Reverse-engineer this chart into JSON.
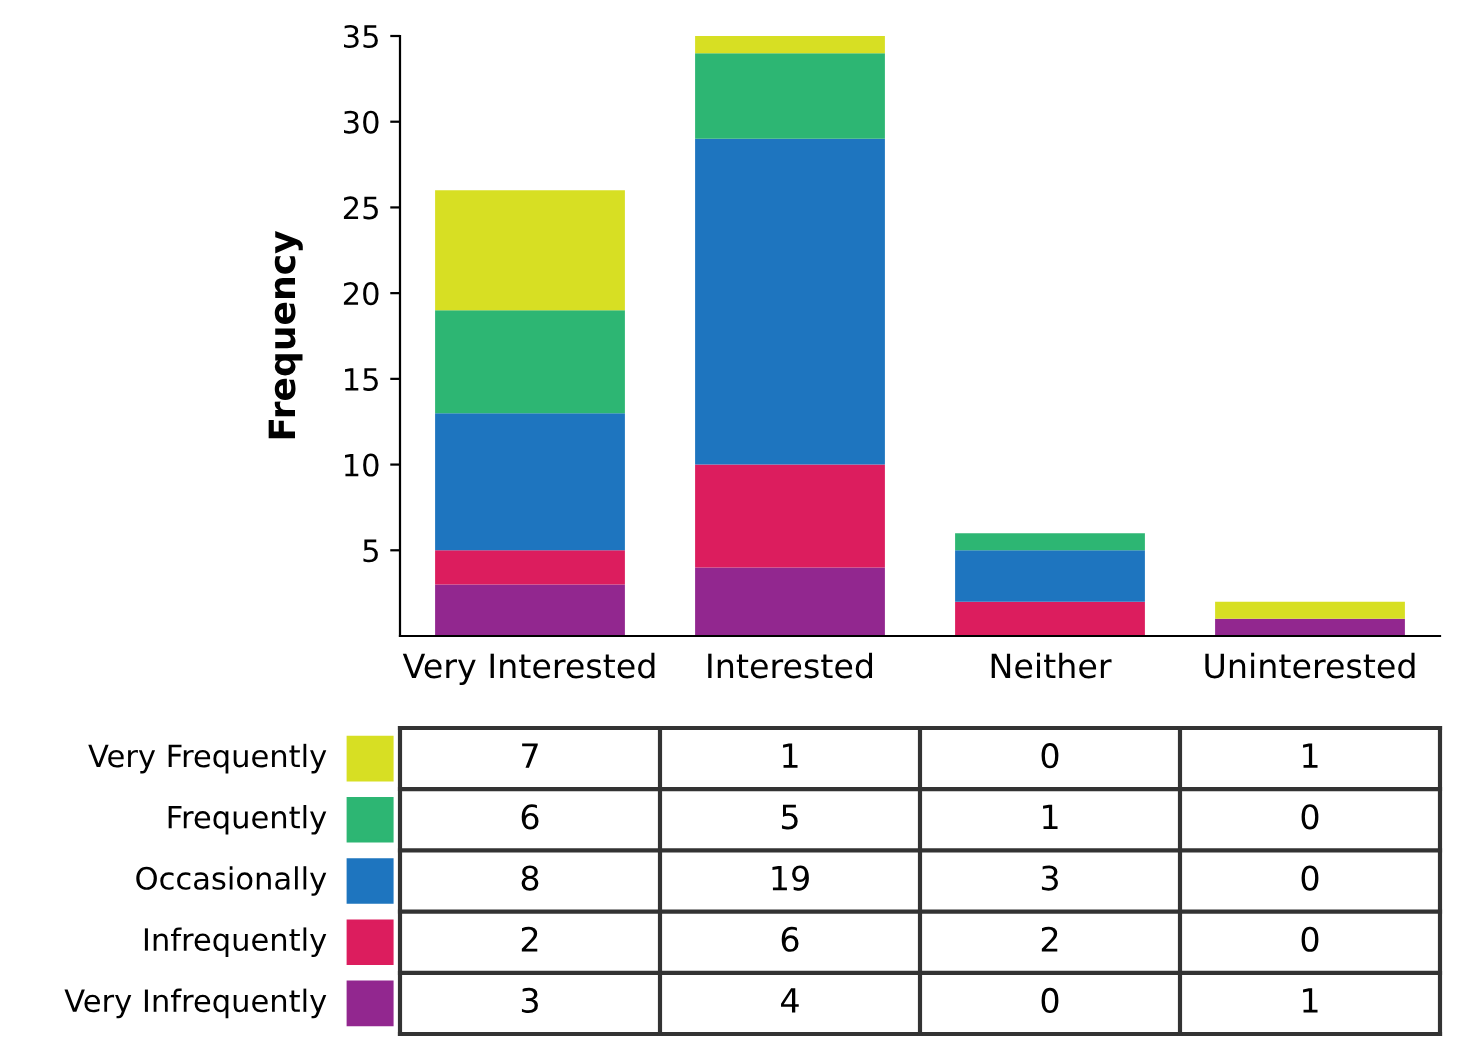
{
  "chart_data": {
    "type": "bar",
    "stacked": true,
    "ylabel": "Frequency",
    "categories": [
      "Very Interested",
      "Interested",
      "Neither",
      "Uninterested"
    ],
    "series": [
      {
        "name": "Very Infrequently",
        "color": "#92278f",
        "values": [
          3,
          4,
          0,
          1
        ]
      },
      {
        "name": "Infrequently",
        "color": "#dc1d5e",
        "values": [
          2,
          6,
          2,
          0
        ]
      },
      {
        "name": "Occasionally",
        "color": "#1e75bf",
        "values": [
          8,
          19,
          3,
          0
        ]
      },
      {
        "name": "Frequently",
        "color": "#2db673",
        "values": [
          6,
          5,
          1,
          0
        ]
      },
      {
        "name": "Very Frequently",
        "color": "#d7df23",
        "values": [
          7,
          1,
          0,
          1
        ]
      }
    ],
    "ylim": [
      0,
      35
    ],
    "yticks": [
      5,
      10,
      15,
      20,
      25,
      30,
      35
    ],
    "grid": false,
    "legend": "bottom",
    "data_labels": true
  }
}
